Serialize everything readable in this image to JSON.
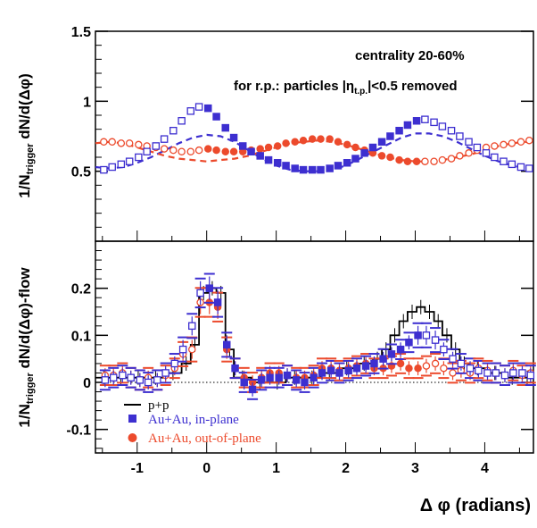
{
  "colors": {
    "blue": "#3d2fd0",
    "red": "#ec4a2c",
    "black": "#000000"
  },
  "chart_data": [
    {
      "type": "scatter",
      "panel": "top",
      "ylabel_main": "1/N",
      "ylabel_sub": "trigger",
      "ylabel_rest": " dN/d(Δφ)",
      "annotations": {
        "centrality": "centrality 20-60%",
        "rp_prefix": "for r.p.: particles |η",
        "rp_sub": "t.p.",
        "rp_suffix": "|<0.5 removed"
      },
      "xlim": [
        -1.6,
        4.7
      ],
      "ylim": [
        0,
        1.5
      ],
      "yticks": [
        "0.5",
        "1",
        "1.5"
      ],
      "x": [
        -1.48,
        -1.36,
        -1.23,
        -1.11,
        -0.98,
        -0.86,
        -0.73,
        -0.61,
        -0.48,
        -0.36,
        -0.23,
        -0.11,
        0.02,
        0.14,
        0.27,
        0.39,
        0.52,
        0.64,
        0.77,
        0.89,
        1.02,
        1.14,
        1.27,
        1.39,
        1.52,
        1.64,
        1.77,
        1.89,
        2.02,
        2.14,
        2.27,
        2.39,
        2.52,
        2.64,
        2.77,
        2.89,
        3.02,
        3.14,
        3.27,
        3.39,
        3.52,
        3.64,
        3.77,
        3.89,
        4.02,
        4.14,
        4.27,
        4.39,
        4.52,
        4.64
      ],
      "series": [
        {
          "name": "Au+Au, in-plane",
          "values": [
            0.51,
            0.53,
            0.55,
            0.57,
            0.6,
            0.64,
            0.68,
            0.73,
            0.79,
            0.86,
            0.93,
            0.96,
            0.95,
            0.89,
            0.81,
            0.74,
            0.68,
            0.64,
            0.61,
            0.58,
            0.56,
            0.54,
            0.52,
            0.51,
            0.51,
            0.51,
            0.52,
            0.54,
            0.56,
            0.59,
            0.63,
            0.67,
            0.71,
            0.75,
            0.79,
            0.83,
            0.86,
            0.87,
            0.85,
            0.82,
            0.79,
            0.75,
            0.71,
            0.67,
            0.63,
            0.6,
            0.57,
            0.55,
            0.53,
            0.52
          ]
        },
        {
          "name": "Au+Au, out-of-plane",
          "values": [
            0.71,
            0.71,
            0.7,
            0.7,
            0.69,
            0.68,
            0.67,
            0.66,
            0.65,
            0.64,
            0.64,
            0.65,
            0.66,
            0.65,
            0.64,
            0.64,
            0.64,
            0.65,
            0.66,
            0.67,
            0.68,
            0.7,
            0.71,
            0.72,
            0.73,
            0.73,
            0.73,
            0.71,
            0.69,
            0.67,
            0.65,
            0.63,
            0.61,
            0.6,
            0.58,
            0.57,
            0.57,
            0.57,
            0.57,
            0.58,
            0.59,
            0.61,
            0.63,
            0.65,
            0.67,
            0.68,
            0.69,
            0.7,
            0.71,
            0.72
          ]
        }
      ],
      "curves": {
        "x": [
          -1.6,
          -1.4,
          -1.2,
          -1.0,
          -0.8,
          -0.6,
          -0.4,
          -0.2,
          0.0,
          0.2,
          0.4,
          0.6,
          0.8,
          1.0,
          1.2,
          1.4,
          1.6,
          1.8,
          2.0,
          2.2,
          2.4,
          2.6,
          2.8,
          3.0,
          3.2,
          3.4,
          3.6,
          3.8,
          4.0,
          4.2,
          4.4,
          4.6,
          4.7
        ],
        "in_plane": [
          0.53,
          0.52,
          0.53,
          0.56,
          0.6,
          0.65,
          0.7,
          0.74,
          0.76,
          0.75,
          0.71,
          0.65,
          0.59,
          0.54,
          0.51,
          0.5,
          0.5,
          0.51,
          0.54,
          0.59,
          0.64,
          0.69,
          0.74,
          0.77,
          0.77,
          0.75,
          0.71,
          0.66,
          0.61,
          0.57,
          0.54,
          0.52,
          0.52
        ],
        "out_of_plane": [
          0.7,
          0.71,
          0.7,
          0.67,
          0.64,
          0.61,
          0.59,
          0.58,
          0.57,
          0.58,
          0.59,
          0.61,
          0.64,
          0.67,
          0.7,
          0.71,
          0.72,
          0.71,
          0.69,
          0.66,
          0.63,
          0.6,
          0.58,
          0.57,
          0.57,
          0.58,
          0.6,
          0.62,
          0.65,
          0.68,
          0.7,
          0.71,
          0.71
        ]
      }
    },
    {
      "type": "scatter",
      "panel": "bottom",
      "ylabel_main": "1/N",
      "ylabel_sub": "trigger",
      "ylabel_rest": " dN/d(Δφ)-flow",
      "xlabel": "Δ φ (radians)",
      "xlim": [
        -1.6,
        4.7
      ],
      "ylim": [
        -0.15,
        0.3
      ],
      "xticks": [
        "-1",
        "0",
        "1",
        "2",
        "3",
        "4"
      ],
      "yticks": [
        "-0.1",
        "0",
        "0.1",
        "0.2"
      ],
      "legend": {
        "placement": "bottom-left",
        "entries": [
          "p+p",
          "Au+Au, in-plane",
          "Au+Au, out-of-plane"
        ]
      },
      "pp_histogram": {
        "name": "p+p",
        "edges": [
          -1.6,
          -1.36,
          -1.11,
          -0.86,
          -0.61,
          -0.36,
          -0.23,
          -0.11,
          0.02,
          0.14,
          0.27,
          0.39,
          0.64,
          0.89,
          1.14,
          1.39,
          1.64,
          1.89,
          2.14,
          2.39,
          2.52,
          2.64,
          2.77,
          2.89,
          3.02,
          3.14,
          3.27,
          3.39,
          3.52,
          3.64,
          3.77,
          4.02,
          4.27,
          4.52,
          4.7
        ],
        "values": [
          0.01,
          0.01,
          0.01,
          0.01,
          0.02,
          0.04,
          0.08,
          0.19,
          0.2,
          0.19,
          0.07,
          0.01,
          0.0,
          0.0,
          0.01,
          0.01,
          0.02,
          0.03,
          0.04,
          0.05,
          0.07,
          0.1,
          0.13,
          0.15,
          0.16,
          0.15,
          0.13,
          0.1,
          0.07,
          0.04,
          0.03,
          0.02,
          0.01,
          0.01
        ]
      },
      "x": [
        -1.48,
        -1.36,
        -1.23,
        -1.11,
        -0.98,
        -0.86,
        -0.73,
        -0.61,
        -0.48,
        -0.36,
        -0.23,
        -0.11,
        0.02,
        0.14,
        0.27,
        0.39,
        0.52,
        0.64,
        0.77,
        0.89,
        1.02,
        1.14,
        1.27,
        1.39,
        1.52,
        1.64,
        1.77,
        1.89,
        2.02,
        2.14,
        2.27,
        2.39,
        2.52,
        2.64,
        2.77,
        2.89,
        3.02,
        3.14,
        3.27,
        3.39,
        3.52,
        3.64,
        3.77,
        3.89,
        4.02,
        4.14,
        4.27,
        4.39,
        4.52,
        4.64
      ],
      "series": [
        {
          "name": "Au+Au, in-plane",
          "values": [
            0.005,
            0.01,
            0.015,
            0.01,
            0.005,
            0.0,
            0.005,
            0.02,
            0.04,
            0.07,
            0.12,
            0.19,
            0.2,
            0.17,
            0.08,
            0.03,
            0.0,
            -0.015,
            0.005,
            0.01,
            0.01,
            0.015,
            0.005,
            0.0,
            0.01,
            0.02,
            0.025,
            0.02,
            0.025,
            0.03,
            0.035,
            0.04,
            0.05,
            0.06,
            0.07,
            0.085,
            0.1,
            0.1,
            0.09,
            0.07,
            0.05,
            0.04,
            0.03,
            0.025,
            0.02,
            0.02,
            0.015,
            0.02,
            0.02,
            0.015
          ],
          "errors": [
            0.015,
            0.015,
            0.015,
            0.015,
            0.015,
            0.015,
            0.015,
            0.015,
            0.015,
            0.02,
            0.02,
            0.025,
            0.025,
            0.025,
            0.02,
            0.015,
            0.015,
            0.015,
            0.015,
            0.015,
            0.015,
            0.015,
            0.015,
            0.015,
            0.015,
            0.015,
            0.015,
            0.015,
            0.015,
            0.015,
            0.015,
            0.015,
            0.015,
            0.015,
            0.015,
            0.015,
            0.02,
            0.02,
            0.02,
            0.015,
            0.015,
            0.015,
            0.015,
            0.015,
            0.015,
            0.015,
            0.015,
            0.015,
            0.015,
            0.015
          ]
        },
        {
          "name": "Au+Au, out-of-plane",
          "values": [
            0.015,
            0.015,
            0.02,
            0.01,
            0.005,
            0.01,
            0.005,
            0.015,
            0.03,
            0.06,
            0.07,
            0.17,
            0.17,
            0.16,
            0.07,
            0.03,
            0.01,
            0.0,
            0.01,
            0.02,
            0.02,
            0.015,
            0.01,
            0.01,
            0.015,
            0.03,
            0.03,
            0.025,
            0.03,
            0.035,
            0.04,
            0.03,
            0.03,
            0.035,
            0.04,
            0.03,
            0.03,
            0.035,
            0.04,
            0.03,
            0.02,
            0.025,
            0.02,
            0.03,
            0.025,
            0.02,
            0.015,
            0.025,
            0.015,
            0.02
          ],
          "errors": [
            0.015,
            0.015,
            0.015,
            0.015,
            0.015,
            0.015,
            0.015,
            0.015,
            0.015,
            0.02,
            0.02,
            0.025,
            0.025,
            0.025,
            0.02,
            0.015,
            0.015,
            0.015,
            0.015,
            0.015,
            0.015,
            0.015,
            0.015,
            0.015,
            0.015,
            0.015,
            0.015,
            0.015,
            0.015,
            0.015,
            0.015,
            0.015,
            0.015,
            0.015,
            0.015,
            0.015,
            0.015,
            0.015,
            0.015,
            0.015,
            0.015,
            0.015,
            0.015,
            0.015,
            0.015,
            0.015,
            0.015,
            0.015,
            0.015,
            0.015
          ]
        }
      ]
    }
  ]
}
